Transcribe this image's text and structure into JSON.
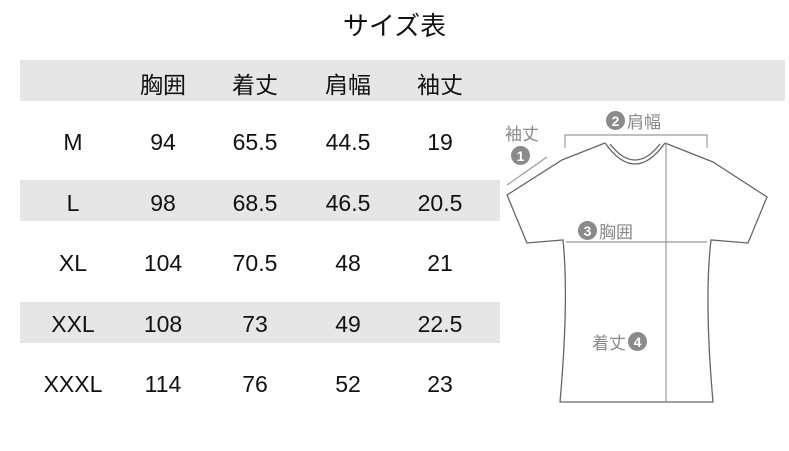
{
  "title": "サイズ表",
  "table": {
    "headers": [
      "",
      "胸囲",
      "着丈",
      "肩幅",
      "袖丈"
    ],
    "rows": [
      [
        "M",
        "94",
        "65.5",
        "44.5",
        "19"
      ],
      [
        "L",
        "98",
        "68.5",
        "46.5",
        "20.5"
      ],
      [
        "XL",
        "104",
        "70.5",
        "48",
        "21"
      ],
      [
        "XXL",
        "108",
        "73",
        "49",
        "22.5"
      ],
      [
        "XXXL",
        "114",
        "76",
        "52",
        "23"
      ]
    ]
  },
  "diagram": {
    "sleeve": {
      "num": "1",
      "label": "袖丈"
    },
    "shoulder": {
      "num": "2",
      "label": "肩幅"
    },
    "chest": {
      "num": "3",
      "label": "胸囲"
    },
    "length": {
      "num": "4",
      "label": "着丈"
    }
  },
  "colors": {
    "band": "#e6e6e6",
    "label": "#8a8a8a",
    "outline": "#666666"
  }
}
